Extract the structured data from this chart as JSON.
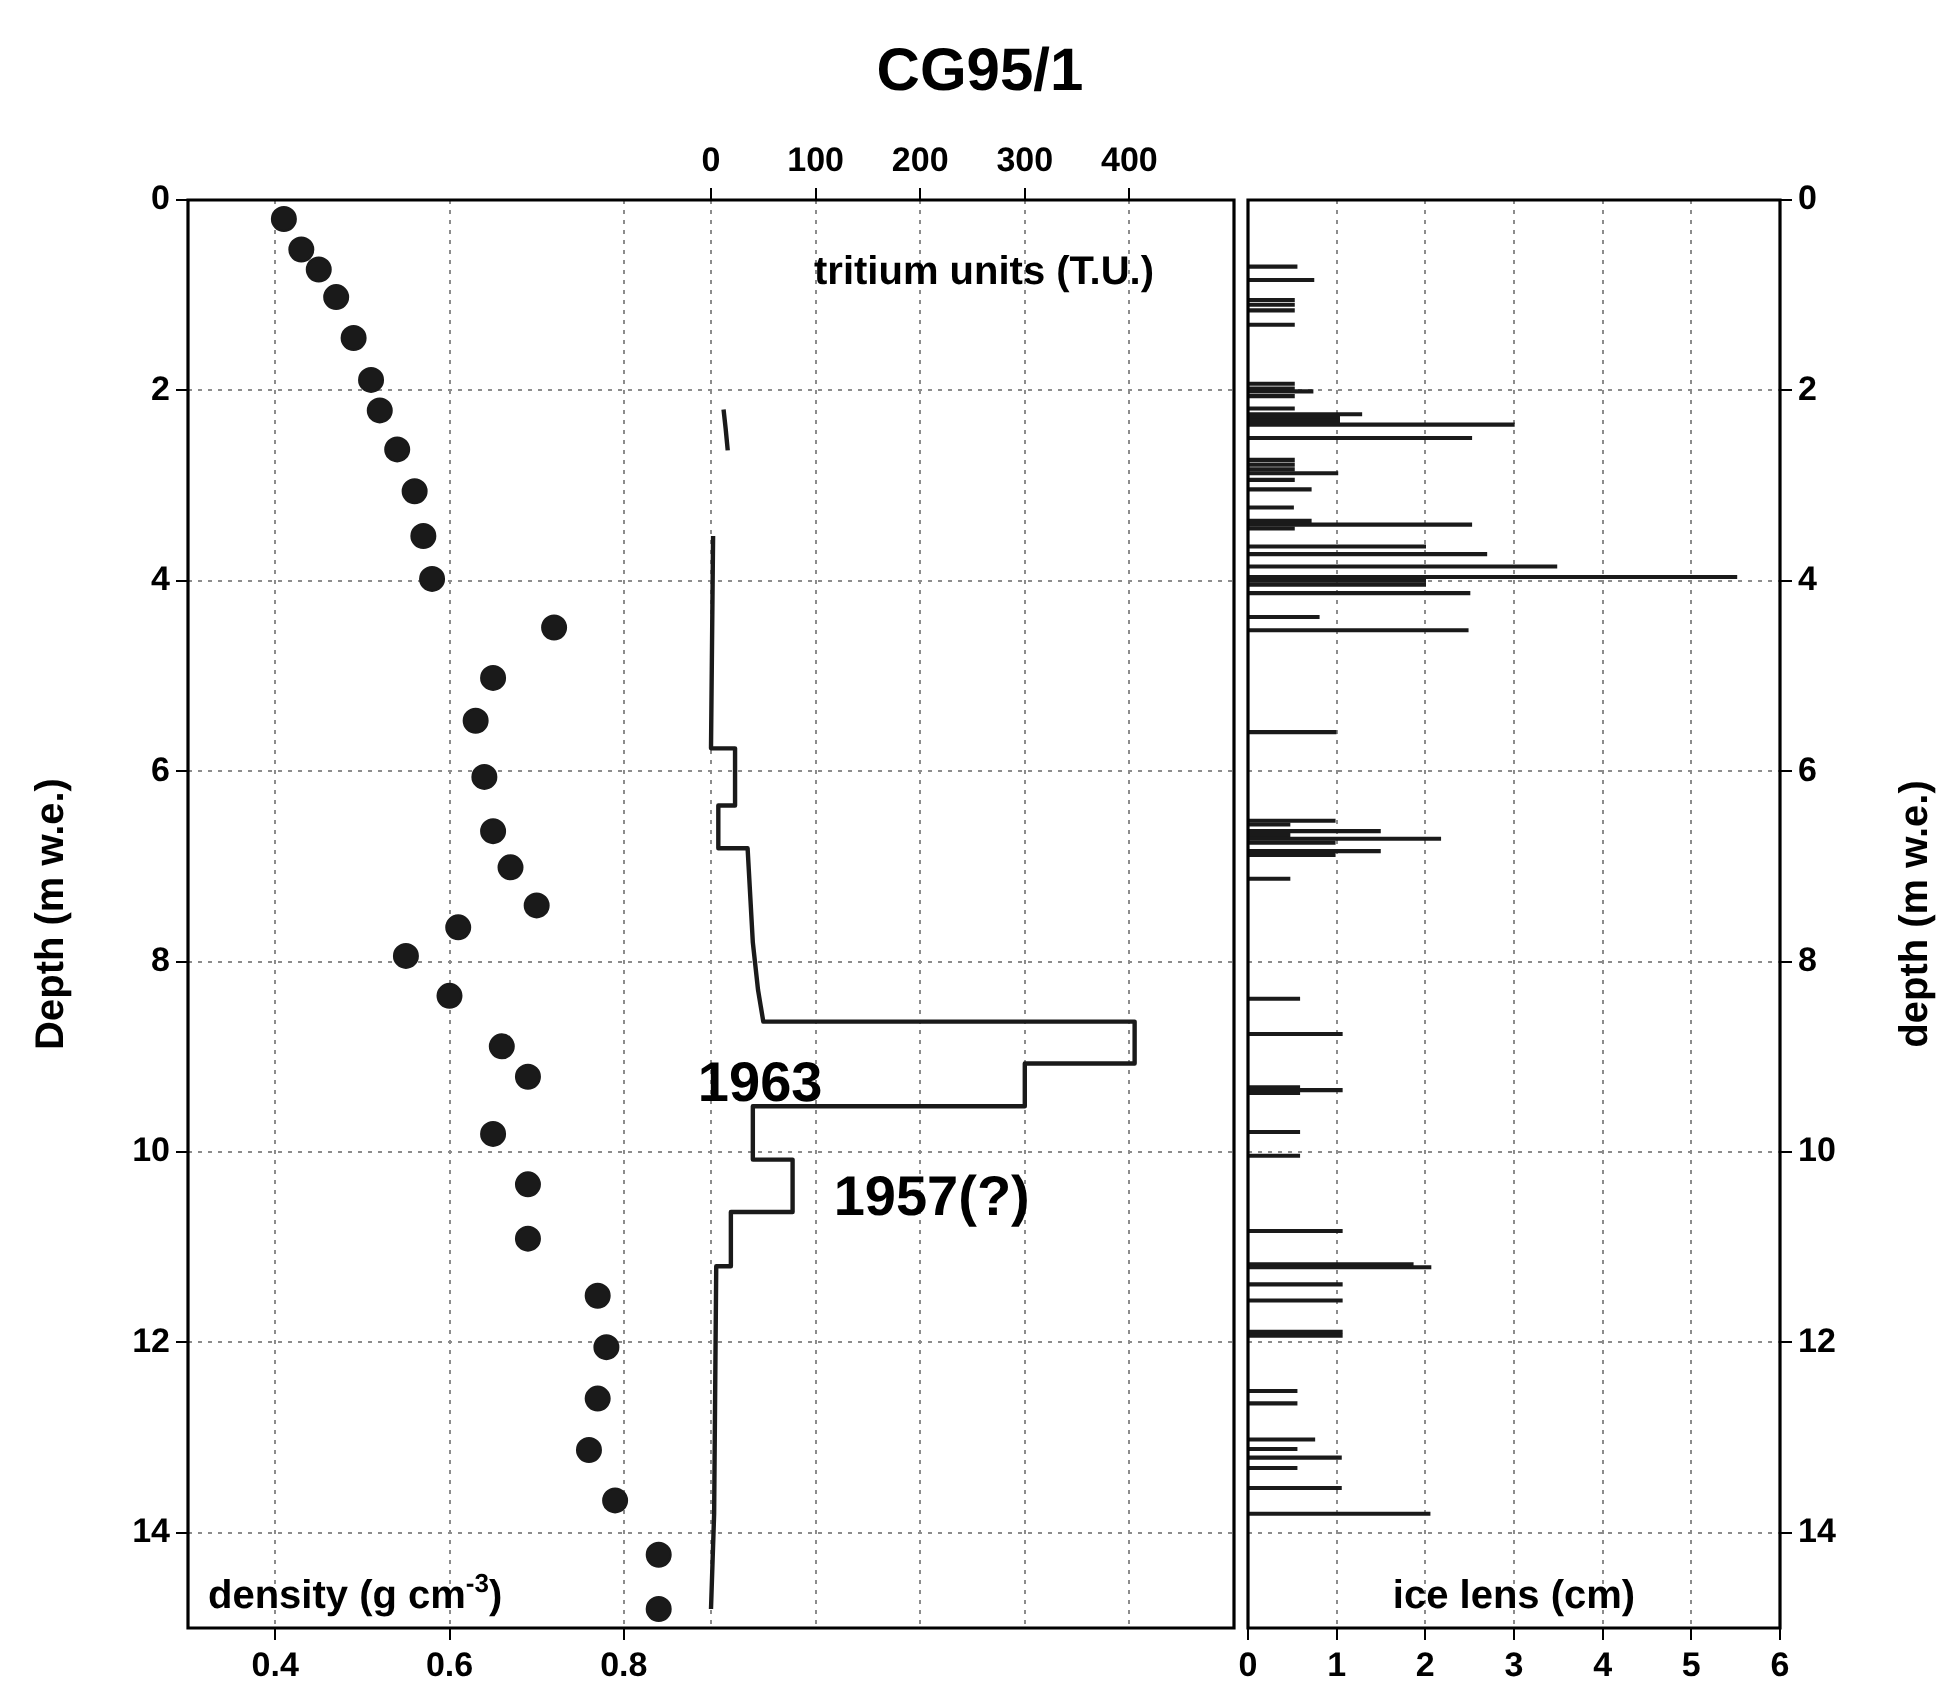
{
  "chart_data": [
    {
      "type": "scatter",
      "title": "CG95/1",
      "xlabel": "density (g cm$^{-3}$)",
      "x2label": "tritium units (T.U.)",
      "ylabel": "Depth (m w.e.)",
      "xlim": [
        0.3,
        1.5
      ],
      "xticks": [
        0.4,
        0.6,
        0.8
      ],
      "x2lim": [
        -500,
        500
      ],
      "x2ticks": [
        0,
        100,
        200,
        300,
        400
      ],
      "ylim": [
        15,
        0
      ],
      "yticks": [
        0,
        2,
        4,
        6,
        8,
        10,
        12,
        14
      ],
      "grid": true,
      "marker": "circle",
      "legend": false,
      "series": [
        {
          "type": "scatter",
          "color": "#1a1a1a",
          "x": [
            0.41,
            0.43,
            0.45,
            0.47,
            0.49,
            0.51,
            0.52,
            0.54,
            0.56,
            0.57,
            0.58,
            0.72,
            0.65,
            0.63,
            0.64,
            0.65,
            0.67,
            0.7,
            0.61,
            0.55,
            0.6,
            0.66,
            0.69,
            0.65,
            0.69,
            0.69,
            0.77,
            0.78,
            0.77,
            0.76,
            0.79,
            0.84,
            0.84
          ],
          "values": [
            0.2,
            0.52,
            0.73,
            1.02,
            1.45,
            1.89,
            2.21,
            2.62,
            3.06,
            3.53,
            3.98,
            4.49,
            5.02,
            5.47,
            6.06,
            6.63,
            7.01,
            7.41,
            7.64,
            7.94,
            8.36,
            8.89,
            9.21,
            9.81,
            10.34,
            10.91,
            11.51,
            12.05,
            12.59,
            13.13,
            13.66,
            14.23,
            14.8
          ]
        },
        {
          "type": "line",
          "axis": "x2",
          "marker": "none",
          "color": "#1a1a1a",
          "x": [
            12,
            14,
            16,
            null,
            2,
            0,
            23,
            23,
            7,
            7,
            35,
            40,
            45,
            50,
            405,
            405,
            300,
            300,
            40,
            40,
            78,
            78,
            19,
            19,
            5,
            3,
            0
          ],
          "values": [
            2.2,
            2.4,
            2.63,
            null,
            3.53,
            5.76,
            5.76,
            6.36,
            6.36,
            6.81,
            6.81,
            7.8,
            8.3,
            8.63,
            8.63,
            9.07,
            9.07,
            9.52,
            9.52,
            10.08,
            10.08,
            10.63,
            10.63,
            11.2,
            11.2,
            13.8,
            14.8
          ]
        }
      ],
      "annotations": [
        "1963",
        "1957(?)"
      ]
    },
    {
      "type": "bar",
      "orientation": "horizontal",
      "xlabel": "ice lens (cm)",
      "ylabel": "depth (m w.e.)",
      "color": "#1a1a1a",
      "xlim": [
        0,
        6
      ],
      "xticks": [
        0,
        1,
        2,
        3,
        4,
        5,
        6
      ],
      "ylim": [
        15,
        0
      ],
      "yticks": [
        0,
        2,
        4,
        6,
        8,
        10,
        12,
        14
      ],
      "grid": true,
      "legend": false,
      "x": [
        0.7,
        0.84,
        1.05,
        1.1,
        1.16,
        1.31,
        1.93,
        1.98,
        2.01,
        2.06,
        2.19,
        2.25,
        2.29,
        2.32,
        2.36,
        2.5,
        2.73,
        2.78,
        2.83,
        2.87,
        2.94,
        3.04,
        3.23,
        3.37,
        3.41,
        3.45,
        3.64,
        3.72,
        3.85,
        3.96,
        4.0,
        4.04,
        4.13,
        4.38,
        4.52,
        5.59,
        6.52,
        6.56,
        6.63,
        6.67,
        6.71,
        6.75,
        6.84,
        6.88,
        7.13,
        8.39,
        8.76,
        9.32,
        9.35,
        9.38,
        9.79,
        10.04,
        10.83,
        11.18,
        11.21,
        11.39,
        11.56,
        11.89,
        11.93,
        12.51,
        12.64,
        13.02,
        13.12,
        13.21,
        13.32,
        13.53,
        13.8
      ],
      "values": [
        0.55,
        0.74,
        0.52,
        0.52,
        0.52,
        0.52,
        0.52,
        0.52,
        0.73,
        0.52,
        0.52,
        1.28,
        1.03,
        1.03,
        3.0,
        2.52,
        0.52,
        0.52,
        0.52,
        1.01,
        0.52,
        0.71,
        0.51,
        0.71,
        2.52,
        0.52,
        2.0,
        2.69,
        3.48,
        5.51,
        2.0,
        2.0,
        2.5,
        0.8,
        2.48,
        0.99,
        0.98,
        0.47,
        1.49,
        0.47,
        2.17,
        0.98,
        1.49,
        0.98,
        0.47,
        0.58,
        1.06,
        0.58,
        1.06,
        0.58,
        0.58,
        0.58,
        1.06,
        1.86,
        2.06,
        1.06,
        1.06,
        1.06,
        1.06,
        0.55,
        0.55,
        0.75,
        0.55,
        1.05,
        0.55,
        1.05,
        2.05
      ]
    }
  ]
}
